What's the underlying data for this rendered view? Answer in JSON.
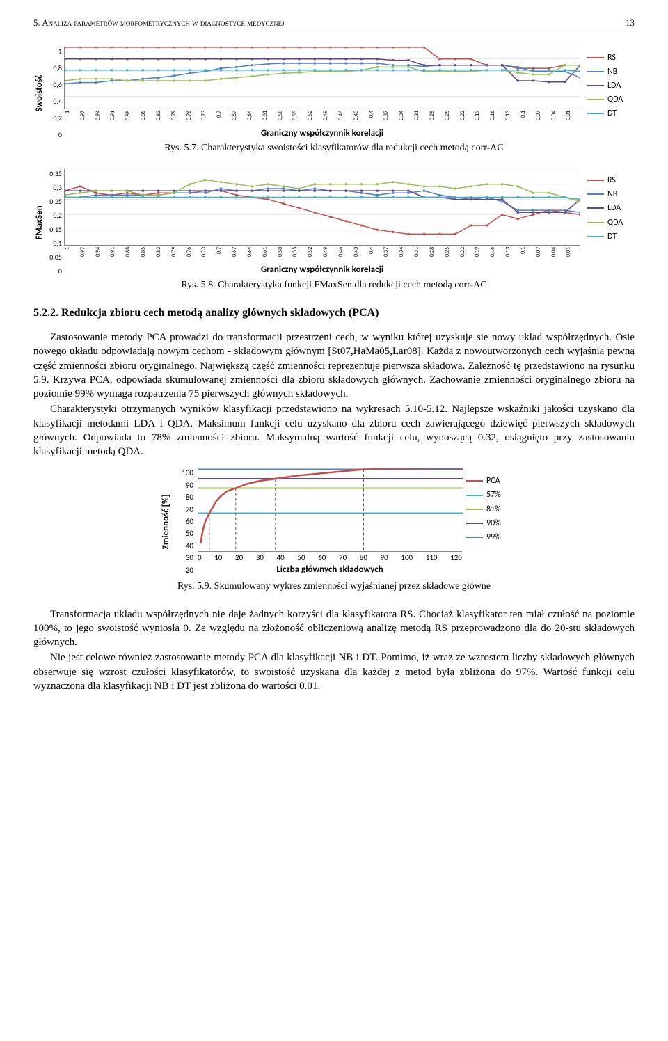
{
  "header": {
    "title": "5. Analiza parametrów morfometrycznych w diagnostyce medycznej",
    "page": "13"
  },
  "x_categories": [
    "1",
    "0,97",
    "0,94",
    "0,91",
    "0,88",
    "0,85",
    "0,82",
    "0,79",
    "0,76",
    "0,73",
    "0,7",
    "0,67",
    "0,64",
    "0,61",
    "0,58",
    "0,55",
    "0,52",
    "0,49",
    "0,46",
    "0,43",
    "0,4",
    "0,37",
    "0,34",
    "0,31",
    "0,28",
    "0,25",
    "0,22",
    "0,19",
    "0,16",
    "0,13",
    "0,1",
    "0,07",
    "0,04",
    "0,01"
  ],
  "x_label": "Graniczny współczynnik korelacji",
  "legend": [
    {
      "name": "RS",
      "color": "#c0504d"
    },
    {
      "name": "NB",
      "color": "#4f81bd"
    },
    {
      "name": "LDA",
      "color": "#604a7b"
    },
    {
      "name": "QDA",
      "color": "#9bbb59"
    },
    {
      "name": "DT",
      "color": "#4bacc6"
    }
  ],
  "chart1": {
    "y_label": "Swoistość",
    "y_ticks": [
      "1",
      "0,8",
      "0,6",
      "0,4",
      "0,2",
      "0"
    ],
    "ylim": [
      0,
      1
    ],
    "caption": "Rys. 5.7. Charakterystyka swoistości klasyfikatorów dla redukcji cech metodą corr-AC",
    "series": {
      "RS": [
        0.99,
        0.99,
        0.99,
        0.99,
        0.99,
        0.99,
        0.99,
        0.99,
        0.99,
        0.99,
        0.99,
        0.99,
        0.99,
        0.99,
        0.99,
        0.99,
        0.99,
        0.99,
        0.99,
        0.99,
        0.99,
        0.99,
        0.99,
        0.99,
        0.8,
        0.8,
        0.8,
        0.7,
        0.7,
        0.65,
        0.65,
        0.65,
        0.7,
        0.7
      ],
      "NB": [
        0.4,
        0.42,
        0.42,
        0.45,
        0.45,
        0.48,
        0.5,
        0.53,
        0.57,
        0.6,
        0.65,
        0.67,
        0.7,
        0.72,
        0.73,
        0.73,
        0.73,
        0.73,
        0.73,
        0.73,
        0.73,
        0.7,
        0.7,
        0.68,
        0.7,
        0.7,
        0.7,
        0.7,
        0.7,
        0.67,
        0.6,
        0.6,
        0.6,
        0.5
      ],
      "LDA": [
        0.8,
        0.8,
        0.8,
        0.8,
        0.8,
        0.8,
        0.8,
        0.8,
        0.8,
        0.8,
        0.8,
        0.8,
        0.8,
        0.8,
        0.8,
        0.8,
        0.8,
        0.8,
        0.8,
        0.8,
        0.8,
        0.78,
        0.78,
        0.7,
        0.7,
        0.7,
        0.7,
        0.7,
        0.7,
        0.45,
        0.45,
        0.43,
        0.43,
        0.7
      ],
      "QDA": [
        0.45,
        0.48,
        0.48,
        0.48,
        0.45,
        0.45,
        0.45,
        0.45,
        0.45,
        0.45,
        0.48,
        0.5,
        0.52,
        0.55,
        0.57,
        0.58,
        0.6,
        0.6,
        0.6,
        0.62,
        0.67,
        0.67,
        0.67,
        0.6,
        0.6,
        0.6,
        0.6,
        0.62,
        0.62,
        0.58,
        0.55,
        0.55,
        0.7,
        0.7
      ],
      "DT": [
        0.62,
        0.62,
        0.62,
        0.62,
        0.62,
        0.62,
        0.62,
        0.62,
        0.62,
        0.62,
        0.62,
        0.62,
        0.62,
        0.62,
        0.62,
        0.62,
        0.62,
        0.62,
        0.62,
        0.62,
        0.62,
        0.62,
        0.62,
        0.62,
        0.62,
        0.62,
        0.62,
        0.62,
        0.62,
        0.62,
        0.62,
        0.62,
        0.62,
        0.6
      ]
    }
  },
  "chart2": {
    "y_label": "FMaxSen",
    "y_ticks": [
      "0,35",
      "0,3",
      "0,25",
      "0,2",
      "0,15",
      "0,1",
      "0,05",
      "0"
    ],
    "ylim": [
      0,
      0.35
    ],
    "caption": "Rys. 5.8. Charakterystyka funkcji FMaxSen dla redukcji cech metodą corr-AC",
    "series": {
      "RS": [
        0.25,
        0.27,
        0.24,
        0.23,
        0.24,
        0.23,
        0.24,
        0.24,
        0.24,
        0.25,
        0.25,
        0.23,
        0.22,
        0.21,
        0.19,
        0.17,
        0.15,
        0.13,
        0.11,
        0.09,
        0.07,
        0.06,
        0.05,
        0.05,
        0.05,
        0.05,
        0.09,
        0.09,
        0.14,
        0.12,
        0.14,
        0.16,
        0.15,
        0.14
      ],
      "NB": [
        0.22,
        0.22,
        0.23,
        0.23,
        0.23,
        0.23,
        0.23,
        0.24,
        0.24,
        0.24,
        0.26,
        0.25,
        0.25,
        0.26,
        0.26,
        0.25,
        0.26,
        0.25,
        0.25,
        0.24,
        0.23,
        0.24,
        0.24,
        0.25,
        0.23,
        0.22,
        0.21,
        0.22,
        0.2,
        0.16,
        0.16,
        0.16,
        0.16,
        0.15
      ],
      "LDA": [
        0.25,
        0.25,
        0.25,
        0.25,
        0.25,
        0.25,
        0.25,
        0.25,
        0.25,
        0.25,
        0.25,
        0.25,
        0.25,
        0.25,
        0.25,
        0.25,
        0.25,
        0.25,
        0.25,
        0.25,
        0.25,
        0.25,
        0.25,
        0.22,
        0.22,
        0.21,
        0.21,
        0.21,
        0.21,
        0.15,
        0.15,
        0.15,
        0.15,
        0.21
      ],
      "QDA": [
        0.23,
        0.24,
        0.25,
        0.25,
        0.25,
        0.23,
        0.23,
        0.24,
        0.28,
        0.3,
        0.29,
        0.28,
        0.27,
        0.28,
        0.27,
        0.26,
        0.28,
        0.28,
        0.28,
        0.28,
        0.28,
        0.29,
        0.28,
        0.27,
        0.27,
        0.26,
        0.27,
        0.28,
        0.28,
        0.27,
        0.24,
        0.24,
        0.22,
        0.2
      ],
      "DT": [
        0.22,
        0.22,
        0.22,
        0.22,
        0.22,
        0.22,
        0.22,
        0.22,
        0.22,
        0.22,
        0.22,
        0.22,
        0.22,
        0.22,
        0.22,
        0.22,
        0.22,
        0.22,
        0.22,
        0.22,
        0.22,
        0.22,
        0.22,
        0.22,
        0.22,
        0.22,
        0.22,
        0.22,
        0.22,
        0.22,
        0.22,
        0.22,
        0.22,
        0.21
      ]
    }
  },
  "section_heading": "5.2.2. Redukcja zbioru cech metodą analizy głównych składowych (PCA)",
  "para1": "Zastosowanie metody PCA prowadzi do transformacji przestrzeni cech, w wyniku której uzyskuje się nowy układ współrzędnych. Osie nowego układu odpowiadają nowym cechom - składowym głównym [St07,HaMa05,Lar08]. Każda z nowoutworzonych cech wyjaśnia pewną część zmienności zbioru oryginalnego. Największą część zmienności reprezentuje pierwsza składowa. Zależność tę przedstawiono na rysunku 5.9. Krzywa PCA, odpowiada skumulowanej zmienności dla zbioru składowych głównych. Zachowanie zmienności oryginalnego zbioru na poziomie 99% wymaga rozpatrzenia 75 pierwszych głównych składowych.",
  "para2": "Charakterystyki otrzymanych wyników klasyfikacji przedstawiono na wykresach 5.10-5.12. Najlepsze wskaźniki jakości uzyskano dla klasyfikacji metodami LDA i QDA. Maksimum funkcji celu uzyskano dla zbioru cech zawierającego dziewięć pierwszych składowych głównych. Odpowiada to 78% zmienności zbioru. Maksymalną wartość funkcji celu, wynoszącą 0.32, osiągnięto przy zastosowaniu klasyfikacji metodą QDA.",
  "pca_chart": {
    "y_label": "Zmienność [%]",
    "x_label": "Liczba głównych składowych",
    "y_ticks": [
      "100",
      "90",
      "80",
      "70",
      "60",
      "50",
      "40",
      "30",
      "20"
    ],
    "x_ticks": [
      "0",
      "10",
      "20",
      "30",
      "40",
      "50",
      "60",
      "70",
      "80",
      "90",
      "100",
      "110",
      "120"
    ],
    "xlim": [
      0,
      120
    ],
    "ylim": [
      20,
      100
    ],
    "pca_curve": [
      [
        1,
        28
      ],
      [
        2,
        40
      ],
      [
        3,
        48
      ],
      [
        5,
        57
      ],
      [
        8,
        68
      ],
      [
        10,
        73
      ],
      [
        13,
        78
      ],
      [
        17,
        81
      ],
      [
        22,
        85
      ],
      [
        28,
        88
      ],
      [
        35,
        90
      ],
      [
        45,
        93
      ],
      [
        55,
        95
      ],
      [
        65,
        97
      ],
      [
        75,
        99
      ],
      [
        90,
        99.5
      ],
      [
        110,
        100
      ],
      [
        120,
        100
      ]
    ],
    "lines": [
      {
        "name": "PCA",
        "color": "#c0504d"
      },
      {
        "name": "57%",
        "color": "#4bacc6",
        "y": 57,
        "x_to": 5
      },
      {
        "name": "81%",
        "color": "#9bbb59",
        "y": 81,
        "x_to": 17
      },
      {
        "name": "90%",
        "color": "#604a7b",
        "y": 90,
        "x_to": 35
      },
      {
        "name": "99%",
        "color": "#4f81bd",
        "y": 99,
        "x_to": 75
      }
    ],
    "caption": "Rys. 5.9. Skumulowany wykres zmienności wyjaśnianej przez składowe główne"
  },
  "para3": "Transformacja układu współrzędnych nie daje żadnych korzyści dla klasyfikatora RS. Chociaż klasyfikator ten miał czułość na poziomie 100%, to jego swoistość wyniosła 0. Ze względu na złożoność obliczeniową analizę metodą RS przeprowadzono dla do 20-stu składowych głównych.",
  "para4": "Nie jest celowe również zastosowanie metody PCA dla klasyfikacji NB i DT. Pomimo, iż wraz ze wzrostem liczby składowych głównych obserwuje się wzrost czułości klasyfikatorów, to swoistość uzyskana dla każdej z metod była zbliżona do 97%. Wartość funkcji celu wyznaczona dla klasyfikacji NB i DT jest zbliżona do wartości 0.01."
}
